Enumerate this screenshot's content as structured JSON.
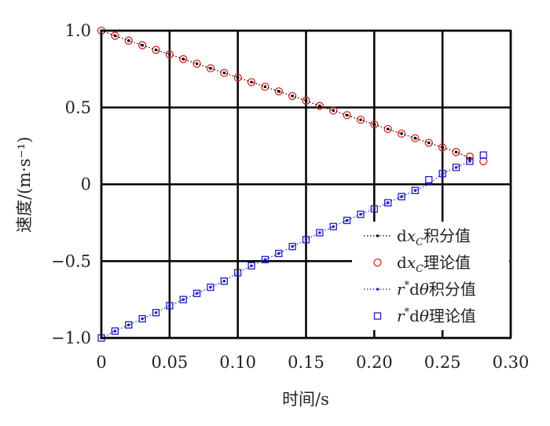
{
  "chart_data": {
    "type": "scatter",
    "xlabel": "时间/s",
    "ylabel": "速度/(m·s⁻¹)",
    "xlim": [
      0,
      0.3
    ],
    "ylim": [
      -1.0,
      1.0
    ],
    "xticks": [
      0,
      0.05,
      0.1,
      0.15,
      0.2,
      0.25,
      0.3
    ],
    "xtick_labels": [
      "0",
      "0.05",
      "0.10",
      "0.15",
      "0.20",
      "0.25",
      "0.30"
    ],
    "yticks": [
      1.0,
      0.5,
      0,
      -0.5,
      -1.0
    ],
    "ytick_labels": [
      "1.0",
      "0.5",
      "0",
      "−0.5",
      "−1.0"
    ],
    "grid": true,
    "legend_position": "bottom-right",
    "series": [
      {
        "name": "dxC积分值",
        "style": "dotted line with small dot markers",
        "color": "#000000",
        "x": [
          0,
          0.01,
          0.02,
          0.03,
          0.04,
          0.05,
          0.06,
          0.07,
          0.08,
          0.09,
          0.1,
          0.11,
          0.12,
          0.13,
          0.14,
          0.15,
          0.16,
          0.17,
          0.18,
          0.19,
          0.2,
          0.21,
          0.22,
          0.23,
          0.24,
          0.25,
          0.26,
          0.27
        ],
        "y": [
          1.0,
          0.967,
          0.935,
          0.905,
          0.875,
          0.845,
          0.815,
          0.785,
          0.755,
          0.725,
          0.695,
          0.665,
          0.635,
          0.605,
          0.575,
          0.545,
          0.51,
          0.48,
          0.45,
          0.42,
          0.39,
          0.36,
          0.33,
          0.3,
          0.27,
          0.24,
          0.21,
          0.17
        ]
      },
      {
        "name": "dxC理论值",
        "style": "open circle markers",
        "color": "#e02020",
        "x": [
          0,
          0.01,
          0.02,
          0.03,
          0.04,
          0.05,
          0.06,
          0.07,
          0.08,
          0.09,
          0.1,
          0.11,
          0.12,
          0.13,
          0.14,
          0.15,
          0.16,
          0.17,
          0.18,
          0.19,
          0.2,
          0.21,
          0.22,
          0.23,
          0.24,
          0.25,
          0.26,
          0.27,
          0.28
        ],
        "y": [
          1.0,
          0.967,
          0.935,
          0.905,
          0.875,
          0.845,
          0.815,
          0.785,
          0.755,
          0.725,
          0.695,
          0.665,
          0.635,
          0.605,
          0.575,
          0.545,
          0.51,
          0.48,
          0.45,
          0.42,
          0.39,
          0.36,
          0.33,
          0.3,
          0.27,
          0.24,
          0.21,
          0.18,
          0.15
        ]
      },
      {
        "name": "r*dθ积分值",
        "style": "dotted line with small dot markers",
        "color": "#2020c0",
        "x": [
          0,
          0.01,
          0.02,
          0.03,
          0.04,
          0.05,
          0.06,
          0.07,
          0.08,
          0.09,
          0.1,
          0.11,
          0.12,
          0.13,
          0.14,
          0.15,
          0.16,
          0.17,
          0.18,
          0.19,
          0.2,
          0.21,
          0.22,
          0.23,
          0.24,
          0.25,
          0.26,
          0.27
        ],
        "y": [
          -1.0,
          -0.955,
          -0.915,
          -0.875,
          -0.835,
          -0.79,
          -0.75,
          -0.71,
          -0.67,
          -0.63,
          -0.575,
          -0.53,
          -0.49,
          -0.45,
          -0.405,
          -0.36,
          -0.315,
          -0.275,
          -0.235,
          -0.195,
          -0.16,
          -0.12,
          -0.08,
          -0.04,
          0.0,
          0.07,
          0.11,
          0.15
        ]
      },
      {
        "name": "r*dθ理论值",
        "style": "open square markers",
        "color": "#2020c0",
        "x": [
          0,
          0.01,
          0.02,
          0.03,
          0.04,
          0.05,
          0.06,
          0.07,
          0.08,
          0.09,
          0.1,
          0.11,
          0.12,
          0.13,
          0.14,
          0.15,
          0.16,
          0.17,
          0.18,
          0.19,
          0.2,
          0.21,
          0.22,
          0.23,
          0.24,
          0.25,
          0.26,
          0.27,
          0.28
        ],
        "y": [
          -1.0,
          -0.955,
          -0.915,
          -0.875,
          -0.835,
          -0.79,
          -0.75,
          -0.71,
          -0.67,
          -0.63,
          -0.575,
          -0.53,
          -0.49,
          -0.45,
          -0.405,
          -0.36,
          -0.315,
          -0.275,
          -0.235,
          -0.195,
          -0.16,
          -0.12,
          -0.08,
          -0.04,
          0.03,
          0.07,
          0.11,
          0.15,
          0.19
        ]
      }
    ]
  },
  "legend": {
    "items": [
      {
        "pre": "d",
        "it": "x",
        "sub": "C",
        "post": "积分值"
      },
      {
        "pre": "d",
        "it": "x",
        "sub": "C",
        "post": "理论值"
      },
      {
        "pre": "",
        "it": "r",
        "sup": "*",
        "mid": "d",
        "it2": "θ",
        "post": "积分值"
      },
      {
        "pre": "",
        "it": "r",
        "sup": "*",
        "mid": "d",
        "it2": "θ",
        "post": "理论值"
      }
    ]
  }
}
